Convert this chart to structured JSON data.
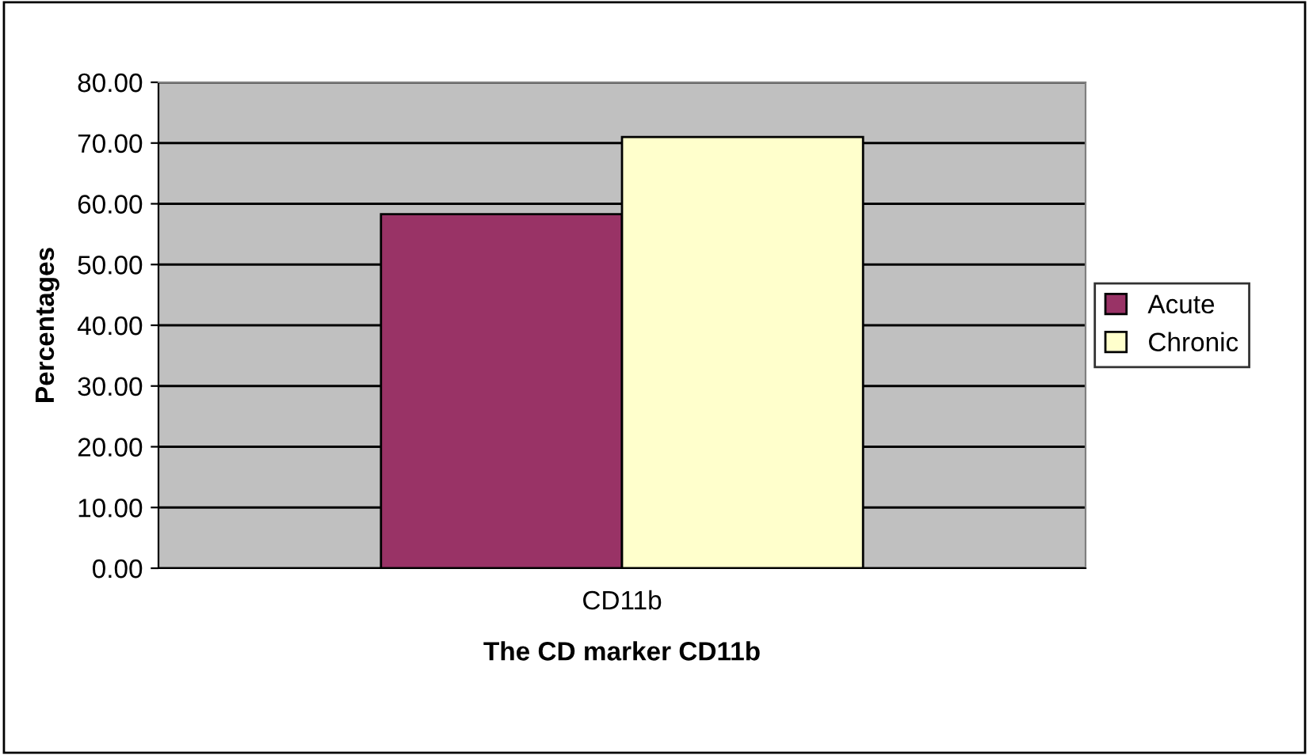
{
  "chart_data": {
    "type": "bar",
    "xlabel": "The CD marker CD11b",
    "ylabel": "Percentages",
    "categories": [
      "CD11b"
    ],
    "series": [
      {
        "name": "Acute",
        "color": "#993366",
        "values": [
          58.3
        ]
      },
      {
        "name": "Chronic",
        "color": "#ffffcc",
        "values": [
          71.0
        ]
      }
    ],
    "ylim": [
      0,
      80
    ],
    "yticks": [
      {
        "value": 0,
        "label": "0.00"
      },
      {
        "value": 10,
        "label": "10.00"
      },
      {
        "value": 20,
        "label": "20.00"
      },
      {
        "value": 30,
        "label": "30.00"
      },
      {
        "value": 40,
        "label": "40.00"
      },
      {
        "value": 50,
        "label": "50.00"
      },
      {
        "value": 60,
        "label": "60.00"
      },
      {
        "value": 70,
        "label": "70.00"
      },
      {
        "value": 80,
        "label": "80.00"
      }
    ],
    "grid": "y",
    "legend": "right"
  }
}
